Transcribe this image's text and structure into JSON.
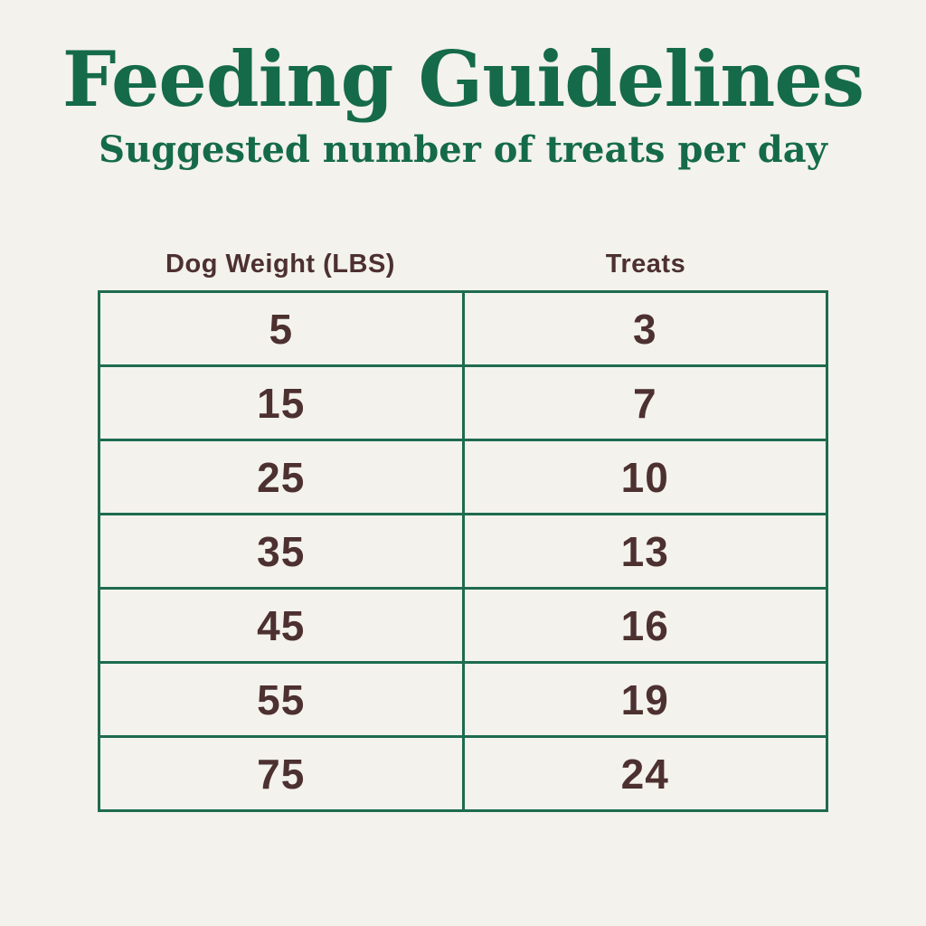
{
  "title": "Feeding Guidelines",
  "subtitle": "Suggested number of treats per day",
  "colors": {
    "background": "#f3f2ec",
    "heading_green": "#156a4a",
    "border_green": "#1e6b50",
    "text_brown": "#4d3030"
  },
  "table": {
    "columns": [
      "Dog Weight (LBS)",
      "Treats"
    ],
    "rows": [
      {
        "weight": "5",
        "treats": "3"
      },
      {
        "weight": "15",
        "treats": "7"
      },
      {
        "weight": "25",
        "treats": "10"
      },
      {
        "weight": "35",
        "treats": "13"
      },
      {
        "weight": "45",
        "treats": "16"
      },
      {
        "weight": "55",
        "treats": "19"
      },
      {
        "weight": "75",
        "treats": "24"
      }
    ]
  },
  "chart_data": {
    "type": "table",
    "title": "Feeding Guidelines",
    "subtitle": "Suggested number of treats per day",
    "columns": [
      "Dog Weight (LBS)",
      "Treats"
    ],
    "rows": [
      [
        5,
        3
      ],
      [
        15,
        7
      ],
      [
        25,
        10
      ],
      [
        35,
        13
      ],
      [
        45,
        16
      ],
      [
        55,
        19
      ],
      [
        75,
        24
      ]
    ]
  }
}
